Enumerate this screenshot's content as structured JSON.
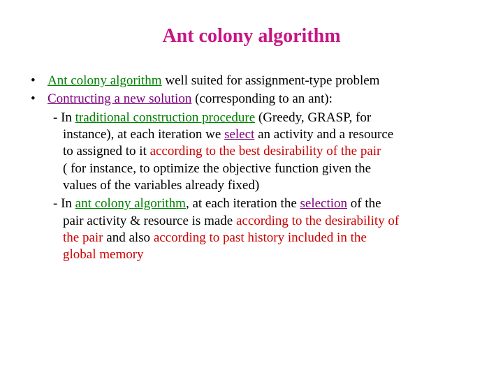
{
  "title": "Ant colony algorithm",
  "bullet1_part1": "Ant colony algorithm",
  "bullet1_part2": " well suited for assignment-type problem",
  "bullet2_part1": "Contructing a new solution",
  "bullet2_part2": " (corresponding to an ant):",
  "sub1_l1a": "- In ",
  "sub1_l1b": "traditional construction procedure",
  "sub1_l1c": " (Greedy, GRASP, for",
  "sub1_l2a": "instance), at each iteration we ",
  "sub1_l2b": "select",
  "sub1_l2c": " an activity and a resource",
  "sub1_l3a": "to assigned to it",
  "sub1_l3b": " according to the best desirability of the pair",
  "sub1_l4": "( for instance, to optimize the objective function given the",
  "sub1_l5": "values of the variables already fixed)",
  "sub2_l1a": "- In ",
  "sub2_l1b": "ant colony algorithm",
  "sub2_l1c": ", at each iteration the ",
  "sub2_l1d": "selection",
  "sub2_l1e": " of the",
  "sub2_l2a": "pair activity & resource is made ",
  "sub2_l2b": "according to the desirability of",
  "sub2_l3a": "the pair",
  "sub2_l3b": " and also ",
  "sub2_l3c": "according to past history included in the",
  "sub2_l4": "global memory",
  "colors": {
    "title": "#c71585",
    "green": "#008000",
    "purple": "#800080",
    "red": "#cc0000",
    "text": "#000000",
    "background": "#ffffff"
  },
  "typography": {
    "title_fontsize": 28,
    "body_fontsize": 19,
    "font_family": "Times New Roman"
  }
}
